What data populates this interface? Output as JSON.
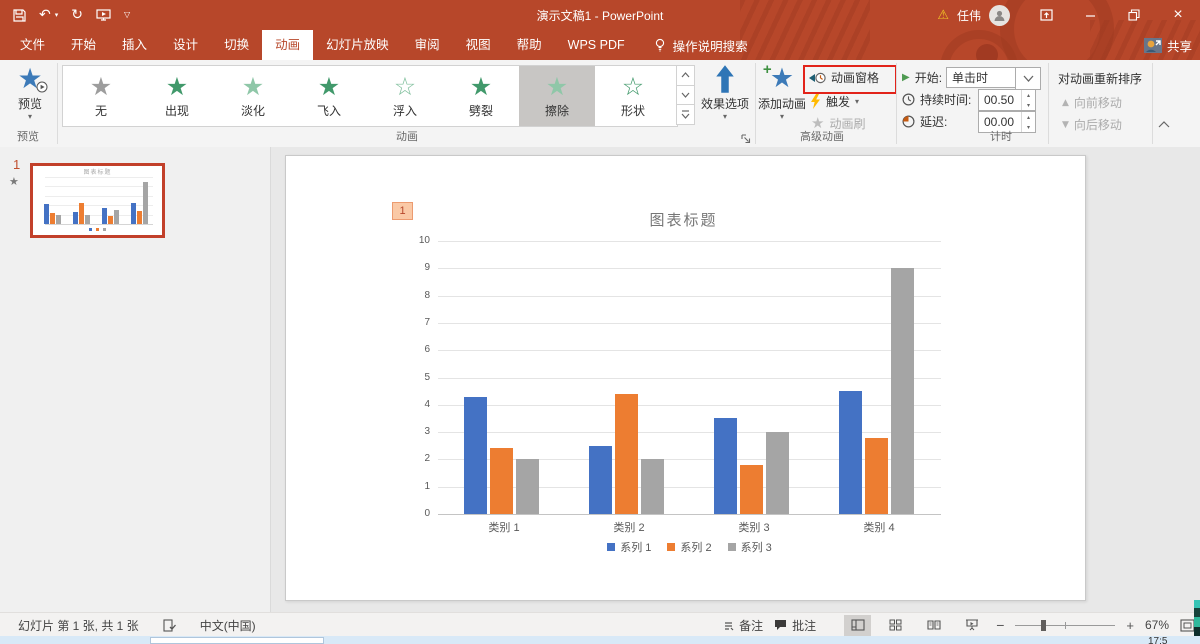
{
  "titlebar": {
    "title": "演示文稿1 - PowerPoint",
    "user": "任伟"
  },
  "tabs": [
    {
      "label": "文件"
    },
    {
      "label": "开始"
    },
    {
      "label": "插入"
    },
    {
      "label": "设计"
    },
    {
      "label": "切换"
    },
    {
      "label": "动画",
      "active": true
    },
    {
      "label": "幻灯片放映"
    },
    {
      "label": "审阅"
    },
    {
      "label": "视图"
    },
    {
      "label": "帮助"
    },
    {
      "label": "WPS PDF"
    }
  ],
  "search_label": "操作说明搜索",
  "share_label": "共享",
  "ribbon": {
    "preview": {
      "label": "预览",
      "group_label": "预览"
    },
    "gallery": {
      "group_label": "动画",
      "items": [
        {
          "label": "无",
          "star": "#9D9D9D"
        },
        {
          "label": "出现",
          "star": "#41996B"
        },
        {
          "label": "淡化",
          "star": "#8FC7A8"
        },
        {
          "label": "飞入",
          "star": "#41996B"
        },
        {
          "label": "浮入",
          "star": "#7FBF9C",
          "outline": true
        },
        {
          "label": "劈裂",
          "star": "#41996B"
        },
        {
          "label": "擦除",
          "star": "#8FC7A8",
          "selected": true
        },
        {
          "label": "形状",
          "star": "#41996B",
          "outline": true
        }
      ]
    },
    "effect_options_label": "效果选项",
    "advanced": {
      "group_label": "高级动画",
      "add_label": "添加动画",
      "pane_label": "动画窗格",
      "trigger_label": "触发",
      "painter_label": "动画刷"
    },
    "timing": {
      "group_label": "计时",
      "start_label": "开始:",
      "start_value": "单击时",
      "duration_label": "持续时间:",
      "duration_value": "00.50",
      "delay_label": "延迟:",
      "delay_value": "00.00"
    },
    "reorder": {
      "title": "对动画重新排序",
      "move_earlier": "向前移动",
      "move_later": "向后移动"
    }
  },
  "thumbnail_panel": {
    "slide_number": "1"
  },
  "slide": {
    "animation_badge": "1"
  },
  "chart_data": {
    "type": "bar",
    "title": "图表标题",
    "categories": [
      "类别 1",
      "类别 2",
      "类别 3",
      "类别 4"
    ],
    "series": [
      {
        "name": "系列 1",
        "color": "#4472C4",
        "values": [
          4.3,
          2.5,
          3.5,
          4.5
        ]
      },
      {
        "name": "系列 2",
        "color": "#ED7D31",
        "values": [
          2.4,
          4.4,
          1.8,
          2.8
        ]
      },
      {
        "name": "系列 3",
        "color": "#A5A5A5",
        "values": [
          2,
          2,
          3,
          9
        ]
      }
    ],
    "ylim": [
      0,
      10
    ],
    "yticks": [
      0,
      1,
      2,
      3,
      4,
      5,
      6,
      7,
      8,
      9,
      10
    ],
    "grid": true,
    "legend_position": "bottom"
  },
  "statusbar": {
    "slide_info": "幻灯片 第 1 张, 共 1 张",
    "language": "中文(中国)",
    "notes_label": "备注",
    "comments_label": "批注",
    "zoom_level": "67%"
  },
  "taskbar_clock": "17:5",
  "colors": {
    "accent_red": "#B7472A",
    "annotation_red": "#E2231A",
    "series1": "#4472C4",
    "series2": "#ED7D31",
    "series3": "#A5A5A5"
  }
}
